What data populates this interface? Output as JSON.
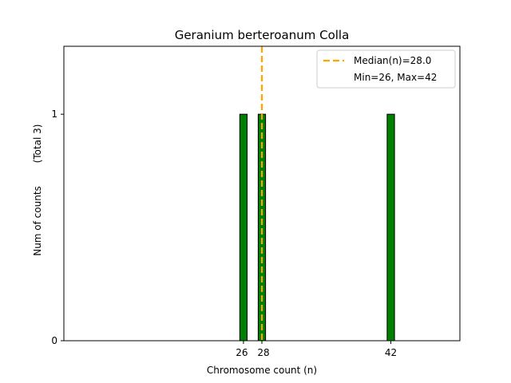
{
  "chart_data": {
    "type": "bar",
    "title": "Geranium berteroanum Colla",
    "xlabel": "Chromosome count (n)",
    "ylabel": "Num of counts",
    "ylabel_note": "(Total 3)",
    "x": [
      26,
      28,
      42
    ],
    "values": [
      1,
      1,
      1
    ],
    "xticks": [
      26,
      28,
      42
    ],
    "xtick_labels": [
      "26",
      "28",
      "42"
    ],
    "yticks": [
      0,
      1
    ],
    "ytick_labels": [
      "0",
      "1"
    ],
    "xlim": [
      6.5,
      49.5
    ],
    "ylim": [
      0,
      1.3
    ],
    "bar_color": "#008000",
    "bar_edge_color": "#000000",
    "median": 28.0,
    "median_color": "#ffa500",
    "legend": {
      "position": "top-right",
      "entries": [
        "Median(n)=28.0",
        "Min=26, Max=42"
      ]
    },
    "grid": false
  }
}
